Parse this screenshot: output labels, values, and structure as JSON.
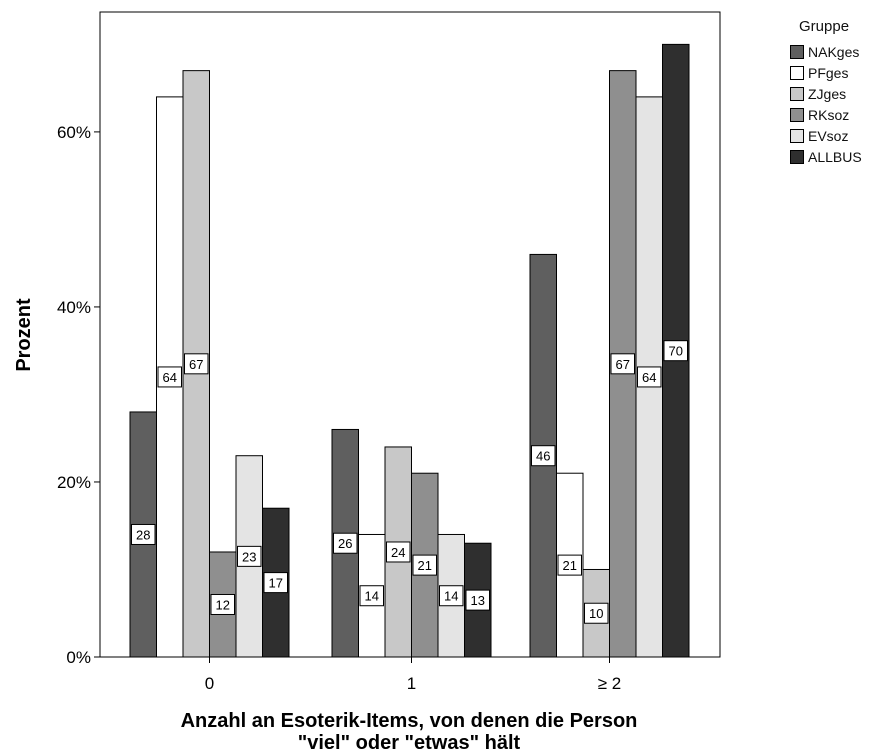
{
  "chart_data": {
    "type": "bar",
    "title": "",
    "xlabel": "Anzahl an Esoterik-Items, von denen die Person \"viel\" oder \"etwas\" hält",
    "xlabel_lines": [
      "Anzahl an Esoterik-Items, von denen die Person",
      "\"viel\" oder \"etwas\" hält"
    ],
    "ylabel": "Prozent",
    "ylim": [
      0,
      73
    ],
    "yticks": [
      0,
      20,
      40,
      60
    ],
    "ytick_labels": [
      "0%",
      "20%",
      "40%",
      "60%"
    ],
    "categories": [
      "0",
      "1",
      "≥ 2"
    ],
    "legend_title": "Gruppe",
    "legend_position": "right",
    "grid": false,
    "series": [
      {
        "name": "NAKges",
        "color": "#5f5f5f",
        "values": [
          28,
          26,
          46
        ],
        "labels": [
          "28",
          "26",
          "46"
        ]
      },
      {
        "name": "PFges",
        "color": "#ffffff",
        "values": [
          64,
          14,
          21
        ],
        "labels": [
          "64",
          "14",
          "21"
        ]
      },
      {
        "name": "ZJges",
        "color": "#c8c8c8",
        "values": [
          67,
          24,
          10
        ],
        "labels": [
          "67",
          "24",
          "10"
        ]
      },
      {
        "name": "RKsoz",
        "color": "#8f8f8f",
        "values": [
          12,
          21,
          67
        ],
        "labels": [
          "12",
          "21",
          "67"
        ]
      },
      {
        "name": "EVsoz",
        "color": "#e4e4e4",
        "values": [
          23,
          14,
          64
        ],
        "labels": [
          "23",
          "14",
          "64"
        ]
      },
      {
        "name": "ALLBUS",
        "color": "#2f2f2f",
        "values": [
          17,
          13,
          70
        ],
        "labels": [
          "17",
          "13",
          "70"
        ]
      }
    ]
  }
}
